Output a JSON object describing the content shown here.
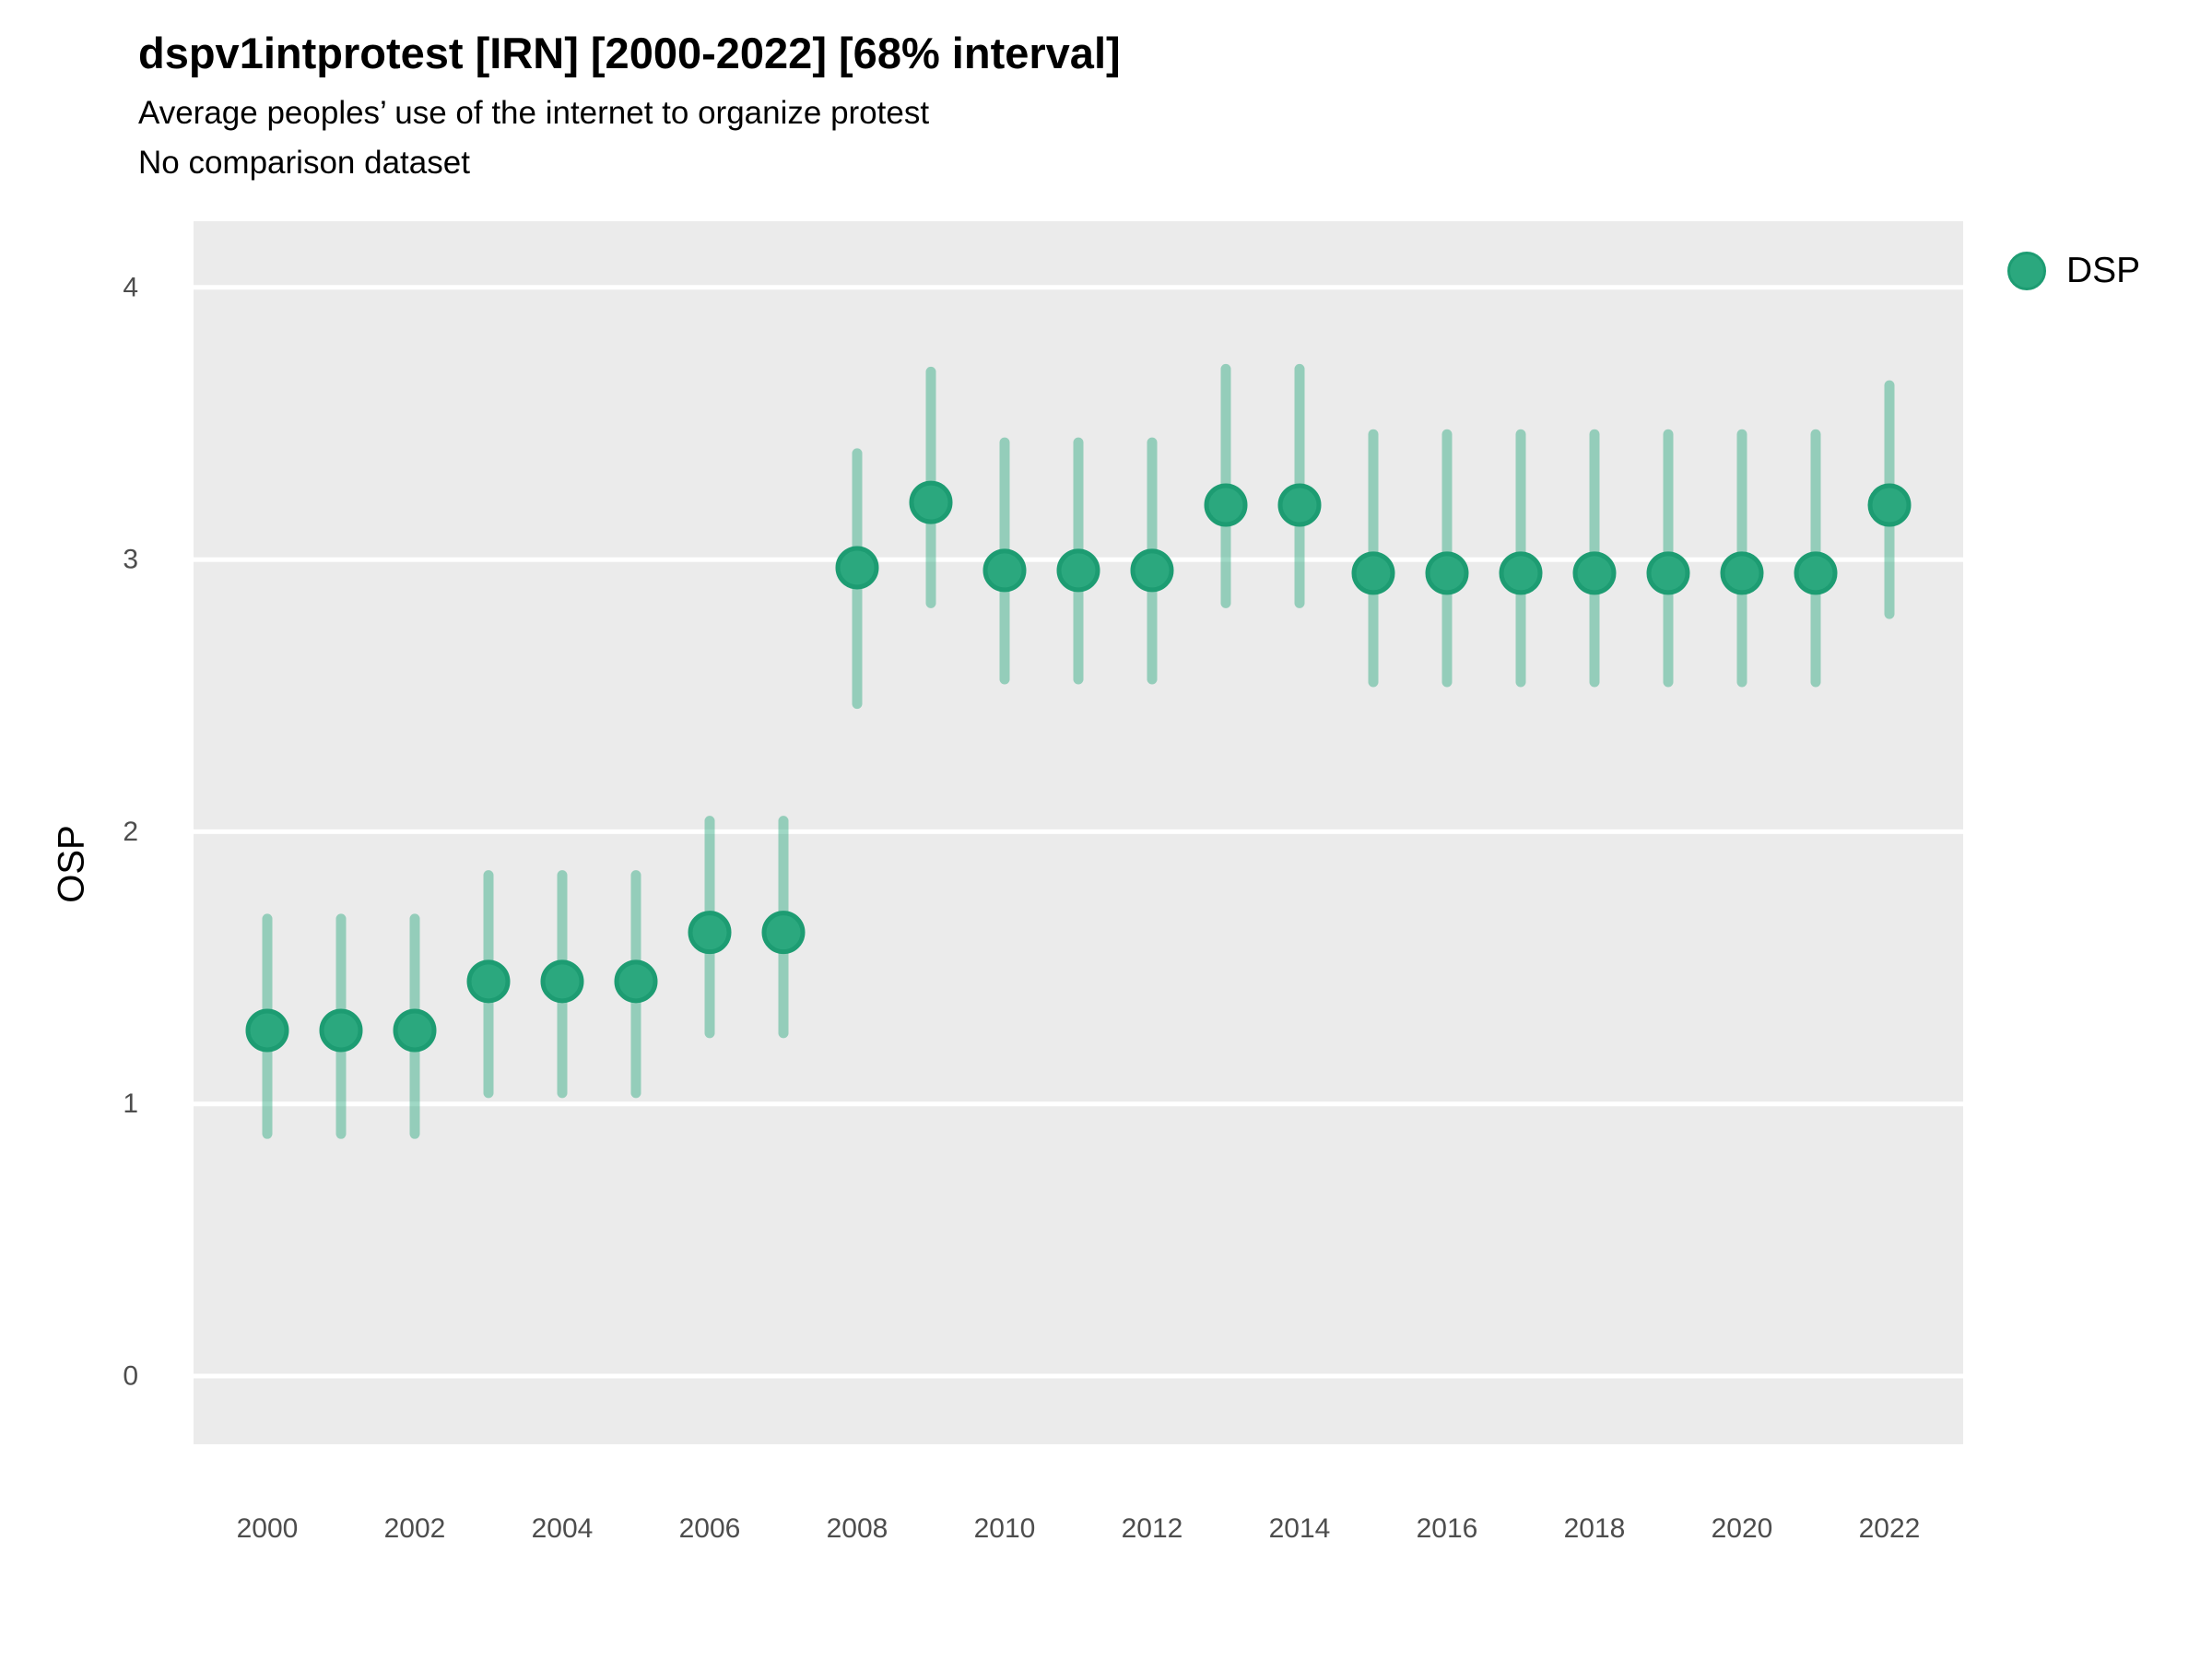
{
  "header": {
    "title": "dspv1intprotest [IRN] [2000-2022] [68% interval]",
    "subtitle": "Average peoples’ use of the internet to organize protest",
    "note": "No comparison dataset"
  },
  "legend": {
    "items": [
      {
        "label": "DSP",
        "color": "#2BA87E",
        "border": "#1D9C72"
      }
    ]
  },
  "chart_data": {
    "type": "scatter",
    "title": "dspv1intprotest [IRN] [2000-2022] [68% interval]",
    "subtitle": "Average peoples’ use of the internet to organize protest",
    "note": "No comparison dataset",
    "interval": "68%",
    "xlabel": "",
    "ylabel": "OSP",
    "x": [
      2000,
      2001,
      2002,
      2003,
      2004,
      2005,
      2006,
      2007,
      2008,
      2009,
      2010,
      2011,
      2012,
      2013,
      2014,
      2015,
      2016,
      2017,
      2018,
      2019,
      2020,
      2021,
      2022
    ],
    "series": [
      {
        "name": "DSP",
        "values": [
          1.27,
          1.27,
          1.27,
          1.45,
          1.45,
          1.45,
          1.63,
          1.63,
          2.97,
          3.21,
          2.96,
          2.96,
          2.96,
          3.2,
          3.2,
          2.95,
          2.95,
          2.95,
          2.95,
          2.95,
          2.95,
          2.95,
          3.2
        ],
        "ci_low": [
          0.89,
          0.89,
          0.89,
          1.04,
          1.04,
          1.04,
          1.26,
          1.26,
          2.47,
          2.84,
          2.56,
          2.56,
          2.56,
          2.84,
          2.84,
          2.55,
          2.55,
          2.55,
          2.55,
          2.55,
          2.55,
          2.55,
          2.8
        ],
        "ci_high": [
          1.68,
          1.68,
          1.68,
          1.84,
          1.84,
          1.84,
          2.04,
          2.04,
          3.39,
          3.69,
          3.43,
          3.43,
          3.43,
          3.7,
          3.7,
          3.46,
          3.46,
          3.46,
          3.46,
          3.46,
          3.46,
          3.46,
          3.64
        ]
      }
    ],
    "xlim": [
      1999,
      2023
    ],
    "ylim": [
      0,
      4
    ],
    "yticks": [
      0,
      1,
      2,
      3,
      4
    ],
    "xticks": [
      2000,
      2002,
      2004,
      2006,
      2008,
      2010,
      2012,
      2014,
      2016,
      2018,
      2020,
      2022
    ],
    "grid": "horizontal-major",
    "legend_position": "right",
    "colors": {
      "point": "#2BA87E",
      "point_stroke": "#1D9C72",
      "interval": "#2AA87E",
      "interval_opacity": 0.45,
      "panel": "#EBEBEB",
      "gridline": "#FFFFFF",
      "tick_text": "#4D4D4D",
      "text": "#000000"
    }
  }
}
